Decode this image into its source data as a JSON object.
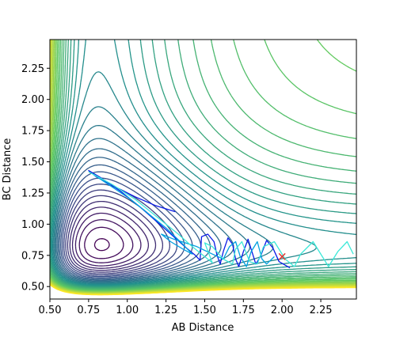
{
  "chart_data": {
    "type": "contour",
    "title": "",
    "xlabel": "AB Distance",
    "ylabel": "BC Distance",
    "xlim": [
      0.5,
      2.48
    ],
    "ylim": [
      0.4,
      2.48
    ],
    "xticks": [
      "0.50",
      "0.75",
      "1.00",
      "1.25",
      "1.50",
      "1.75",
      "2.00",
      "2.25"
    ],
    "yticks": [
      "0.50",
      "0.75",
      "1.00",
      "1.25",
      "1.50",
      "1.75",
      "2.00",
      "2.25"
    ],
    "grid": false,
    "colormap": [
      "#440154",
      "#3b528b",
      "#21918c",
      "#5ec962",
      "#fde725"
    ],
    "trajectories": [
      {
        "color": "#0a1ae6",
        "points": [
          [
            1.31,
            1.1
          ],
          [
            1.18,
            1.15
          ],
          [
            1.05,
            1.22
          ],
          [
            0.92,
            1.3
          ],
          [
            0.8,
            1.38
          ],
          [
            0.75,
            1.43
          ],
          [
            0.82,
            1.38
          ],
          [
            0.95,
            1.27
          ],
          [
            1.08,
            1.14
          ],
          [
            1.2,
            1.01
          ],
          [
            1.3,
            0.9
          ],
          [
            1.38,
            0.81
          ],
          [
            1.44,
            0.75
          ],
          [
            1.47,
            0.71
          ],
          [
            1.48,
            0.9
          ],
          [
            1.52,
            0.92
          ],
          [
            1.56,
            0.86
          ],
          [
            1.58,
            0.75
          ],
          [
            1.6,
            0.68
          ],
          [
            1.62,
            0.78
          ],
          [
            1.65,
            0.89
          ],
          [
            1.68,
            0.84
          ],
          [
            1.7,
            0.72
          ],
          [
            1.72,
            0.66
          ],
          [
            1.75,
            0.78
          ],
          [
            1.78,
            0.88
          ],
          [
            1.8,
            0.8
          ],
          [
            1.83,
            0.68
          ],
          [
            1.86,
            0.74
          ],
          [
            1.9,
            0.87
          ],
          [
            1.94,
            0.81
          ],
          [
            1.98,
            0.7
          ],
          [
            2.05,
            0.65
          ]
        ]
      },
      {
        "color": "#00a0e0",
        "points": [
          [
            0.78,
            1.4
          ],
          [
            0.9,
            1.3
          ],
          [
            1.02,
            1.2
          ],
          [
            1.14,
            1.08
          ],
          [
            1.25,
            0.97
          ],
          [
            1.35,
            0.85
          ],
          [
            1.42,
            0.76
          ],
          [
            1.36,
            0.8
          ],
          [
            1.28,
            0.86
          ],
          [
            1.22,
            0.92
          ],
          [
            1.3,
            0.88
          ],
          [
            1.45,
            0.82
          ],
          [
            1.55,
            0.76
          ],
          [
            1.62,
            0.72
          ],
          [
            1.66,
            0.82
          ],
          [
            1.7,
            0.86
          ],
          [
            1.73,
            0.74
          ],
          [
            1.77,
            0.66
          ],
          [
            1.8,
            0.78
          ],
          [
            1.84,
            0.86
          ],
          [
            1.87,
            0.72
          ],
          [
            1.9,
            0.68
          ],
          [
            1.95,
            0.74
          ]
        ]
      },
      {
        "color": "#3ce8d8",
        "points": [
          [
            0.75,
            1.42
          ],
          [
            0.9,
            1.32
          ],
          [
            1.05,
            1.2
          ],
          [
            1.2,
            1.05
          ],
          [
            1.33,
            0.92
          ],
          [
            1.42,
            0.82
          ],
          [
            1.5,
            0.74
          ],
          [
            1.55,
            0.69
          ],
          [
            1.5,
            0.85
          ],
          [
            1.55,
            0.82
          ],
          [
            1.62,
            0.72
          ],
          [
            1.68,
            0.68
          ],
          [
            1.7,
            0.8
          ],
          [
            1.74,
            0.86
          ],
          [
            1.79,
            0.7
          ],
          [
            1.84,
            0.68
          ],
          [
            1.88,
            0.82
          ],
          [
            1.95,
            0.86
          ],
          [
            2.02,
            0.72
          ],
          [
            2.08,
            0.66
          ],
          [
            2.12,
            0.76
          ],
          [
            2.2,
            0.86
          ],
          [
            2.26,
            0.74
          ],
          [
            2.3,
            0.66
          ],
          [
            2.36,
            0.78
          ],
          [
            2.42,
            0.86
          ],
          [
            2.46,
            0.76
          ]
        ]
      }
    ],
    "marker": {
      "symbol": "x",
      "x": 2.0,
      "y": 0.74,
      "color": "#e0302a"
    }
  }
}
